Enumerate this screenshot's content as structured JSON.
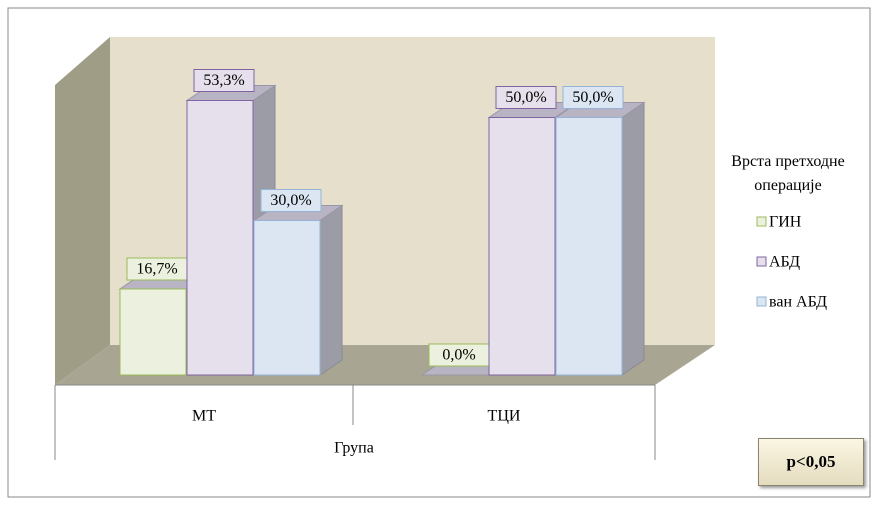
{
  "chart_data": {
    "type": "bar",
    "categories": [
      "МТ",
      "ТЦИ"
    ],
    "x_label": "Група",
    "legend_title": "Врста претходне операције",
    "annotation": "p<0,05",
    "series": [
      {
        "name": "ГИН",
        "color": "#ebf1de",
        "values": [
          16.7,
          0.0
        ],
        "value_labels": [
          "16,7%",
          "0,0%"
        ]
      },
      {
        "name": "АБД",
        "color": "#e6e0ec",
        "values": [
          53.3,
          50.0
        ],
        "value_labels": [
          "53,3%",
          "50,0%"
        ]
      },
      {
        "name": "ван АБД",
        "color": "#dce6f2",
        "values": [
          30.0,
          50.0
        ],
        "value_labels": [
          "30,0%",
          "50,0%"
        ]
      }
    ]
  }
}
